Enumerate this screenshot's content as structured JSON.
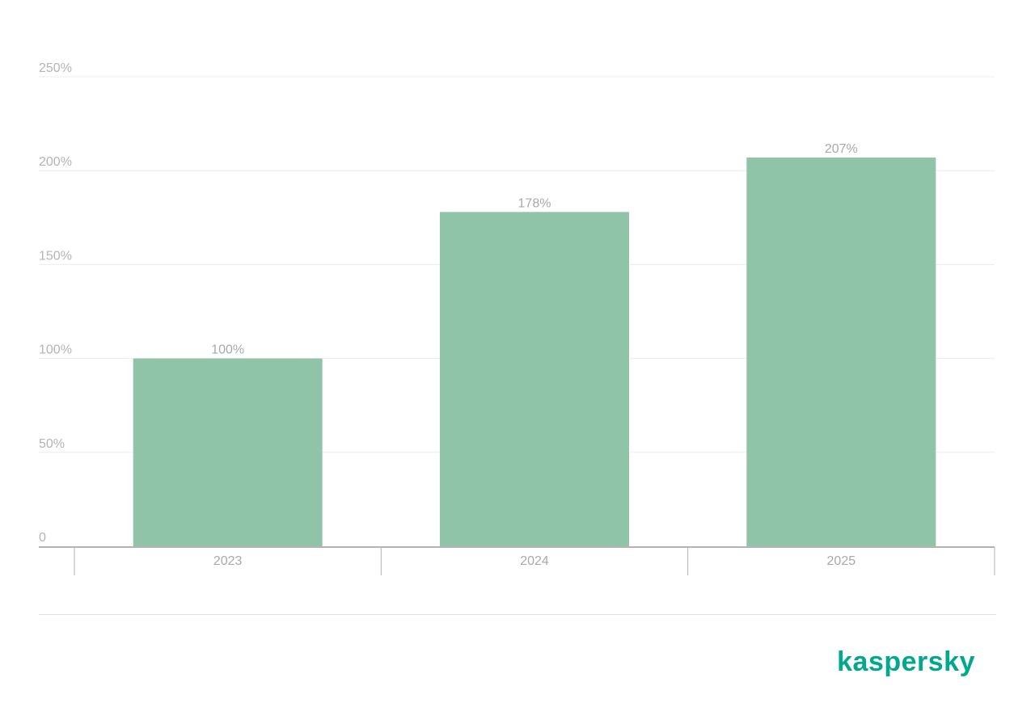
{
  "brand": {
    "logo_text": "kaspersky",
    "color": "#00a88e"
  },
  "colors": {
    "bar": "#90c4a8",
    "grid": "#ececec",
    "axis": "#b3b3b3",
    "tick_text": "#b4b4b4",
    "label_text": "#a9a9a9"
  },
  "chart_data": {
    "type": "bar",
    "title": "",
    "xlabel": "",
    "ylabel": "",
    "categories": [
      "2023",
      "2024",
      "2025"
    ],
    "values": [
      100,
      178,
      207
    ],
    "value_labels": [
      "100%",
      "178%",
      "207%"
    ],
    "ylim": [
      0,
      250
    ],
    "y_ticks": [
      0,
      50,
      100,
      150,
      200,
      250
    ],
    "y_tick_labels": [
      "0",
      "50%",
      "100%",
      "150%",
      "200%",
      "250%"
    ],
    "grid": true,
    "legend": "none"
  }
}
